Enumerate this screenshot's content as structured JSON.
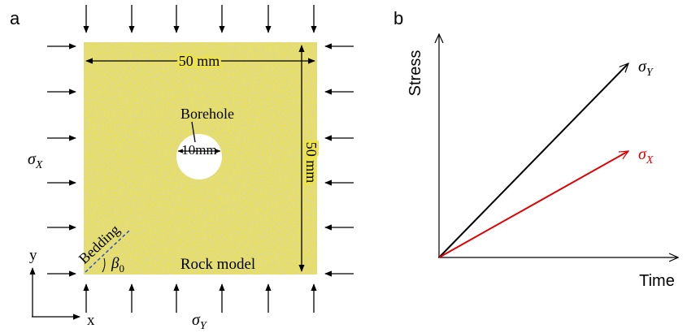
{
  "panel_a": {
    "label": "a",
    "width_dimension": "50 mm",
    "height_dimension": "50 mm",
    "borehole_label": "Borehole",
    "borehole_diameter": "10mm",
    "bedding_label": "Bedding",
    "bedding_angle": {
      "symbol": "β",
      "subscript": "0"
    },
    "model_label": "Rock model",
    "stress_x": {
      "symbol": "σ",
      "subscript": "X"
    },
    "stress_y": {
      "symbol": "σ",
      "subscript": "Y"
    },
    "axis_x": "x",
    "axis_y": "y"
  },
  "panel_b": {
    "label": "b",
    "y_axis_label": "Stress",
    "x_axis_label": "Time",
    "lines": [
      {
        "symbol": "σ",
        "subscript": "Y",
        "color": "#000000"
      },
      {
        "symbol": "σ",
        "subscript": "X",
        "color": "#e00000"
      }
    ]
  }
}
